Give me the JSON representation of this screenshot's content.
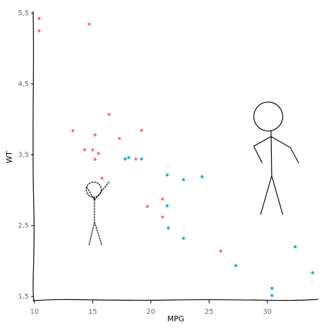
{
  "chart_data": {
    "type": "scatter",
    "xlabel": "MPG",
    "ylabel": "WT",
    "xlim": [
      9.88,
      34.35
    ],
    "ylim": [
      1.44,
      5.52
    ],
    "xticks": [
      10,
      15,
      20,
      25,
      30
    ],
    "yticks": [
      {
        "value": 1.5,
        "label": "1,5"
      },
      {
        "value": 2.5,
        "label": "2,5"
      },
      {
        "value": 3.5,
        "label": "3,5"
      },
      {
        "value": 4.5,
        "label": "4,5"
      },
      {
        "value": 5.5,
        "label": "5,5"
      }
    ],
    "grid": false,
    "series": [
      {
        "color": "#f8766d",
        "x": [
          21.0,
          21.0,
          18.7,
          14.3,
          16.4,
          17.3,
          15.2,
          10.4,
          10.4,
          14.7,
          15.5,
          15.2,
          13.3,
          19.2,
          26.0,
          15.8,
          19.7,
          15.0
        ],
        "values": [
          2.62,
          2.875,
          3.44,
          3.57,
          4.07,
          3.73,
          3.78,
          5.25,
          5.424,
          5.345,
          3.52,
          3.435,
          3.84,
          3.845,
          2.14,
          3.17,
          2.77,
          3.57
        ]
      },
      {
        "color": "#00bfc4",
        "x": [
          22.8,
          21.4,
          18.1,
          24.4,
          22.8,
          19.2,
          17.8,
          32.4,
          30.4,
          33.9,
          21.5,
          27.3,
          30.4,
          21.4
        ],
        "values": [
          2.32,
          3.215,
          3.46,
          3.19,
          3.15,
          3.44,
          3.44,
          2.2,
          1.615,
          1.835,
          2.465,
          1.935,
          1.513,
          2.78
        ]
      }
    ]
  }
}
